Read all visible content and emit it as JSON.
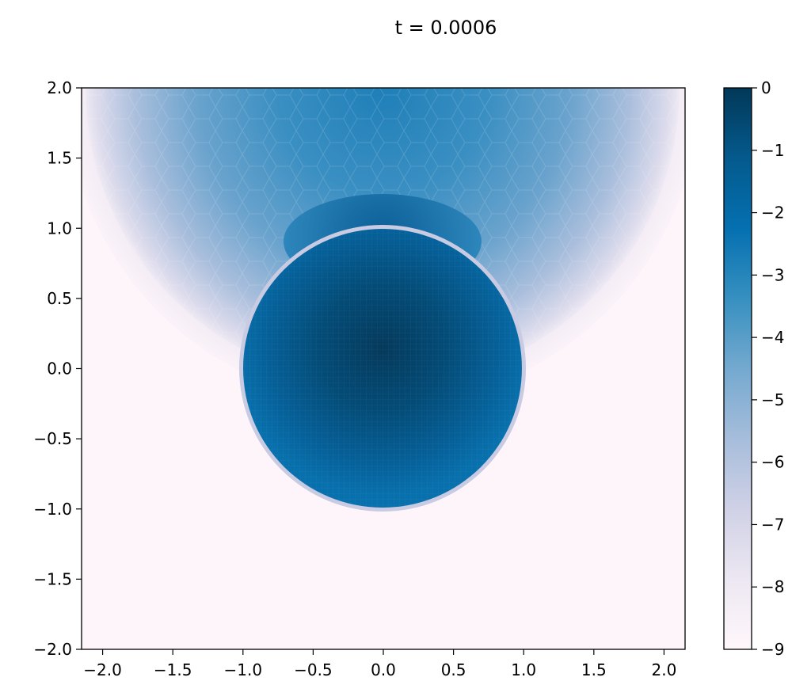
{
  "chart_data": {
    "type": "heatmap",
    "title": "t = 0.0006",
    "xlabel": "",
    "ylabel": "",
    "xlim": [
      -2.15,
      2.15
    ],
    "ylim": [
      -2.0,
      2.0
    ],
    "x_ticks": [
      -2.0,
      -1.5,
      -1.0,
      -0.5,
      0.0,
      0.5,
      1.0,
      1.5,
      2.0
    ],
    "x_tick_labels": [
      "−2.0",
      "−1.5",
      "−1.0",
      "−0.5",
      "0.0",
      "0.5",
      "1.0",
      "1.5",
      "2.0"
    ],
    "y_ticks": [
      2.0,
      1.5,
      1.0,
      0.5,
      0.0,
      -0.5,
      -1.0,
      -1.5,
      -2.0
    ],
    "y_tick_labels": [
      "2.0",
      "1.5",
      "1.0",
      "0.5",
      "0.0",
      "−0.5",
      "−1.0",
      "−1.5",
      "−2.0"
    ],
    "grid": false,
    "colormap": "PuBu",
    "colorbar": {
      "range": [
        -9,
        0
      ],
      "ticks": [
        0,
        -1,
        -2,
        -3,
        -4,
        -5,
        -6,
        -7,
        -8,
        -9
      ],
      "tick_labels": [
        "0",
        "−1",
        "−2",
        "−3",
        "−4",
        "−5",
        "−6",
        "−7",
        "−8",
        "−9"
      ],
      "colors": [
        "#fff7fb",
        "#ece7f2",
        "#d0d1e6",
        "#a6bddb",
        "#74a9cf",
        "#3690c0",
        "#0570b0",
        "#045a8d",
        "#023858"
      ]
    },
    "regions": [
      {
        "name": "sphere",
        "shape": "circle",
        "center": [
          0.0,
          0.0
        ],
        "radius": 1.0,
        "value_center": -0.3,
        "value_edge": -2.2
      },
      {
        "name": "upper plume",
        "shape": "disc",
        "center": [
          0.0,
          2.0
        ],
        "radius": 2.1,
        "value_center": -3.5,
        "value_edge": -7.5
      },
      {
        "name": "background",
        "value": -9
      }
    ]
  }
}
